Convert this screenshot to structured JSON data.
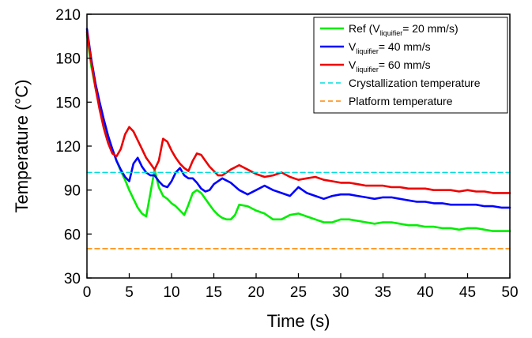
{
  "chart_data": {
    "type": "line",
    "xlabel": "Time (s)",
    "ylabel": "Temperature (°C)",
    "xlim": [
      0,
      50
    ],
    "ylim": [
      30,
      210
    ],
    "xticks": [
      0,
      5,
      10,
      15,
      20,
      25,
      30,
      35,
      40,
      45,
      50
    ],
    "yticks": [
      30,
      60,
      90,
      120,
      150,
      180,
      210
    ],
    "grid": false,
    "legend_position": "top-right",
    "series": [
      {
        "name": "Ref (Vliquifier= 20 mm/s)",
        "legend": {
          "pre": "Ref (V",
          "sub": "liquifier",
          "post": "= 20 mm/s)"
        },
        "color": "#00ee00",
        "style": "solid",
        "x": [
          0,
          0.5,
          1,
          1.5,
          2,
          2.5,
          3,
          3.5,
          4,
          4.5,
          5,
          5.5,
          6,
          6.5,
          7,
          7.5,
          8,
          8.5,
          9,
          9.5,
          10,
          10.5,
          11,
          11.5,
          12,
          12.5,
          13,
          13.5,
          14,
          14.5,
          15,
          15.5,
          16,
          16.5,
          17,
          17.5,
          18,
          19,
          20,
          21,
          22,
          23,
          24,
          25,
          26,
          27,
          28,
          29,
          30,
          31,
          32,
          33,
          34,
          35,
          36,
          37,
          38,
          39,
          40,
          41,
          42,
          43,
          44,
          45,
          46,
          47,
          48,
          49,
          50
        ],
        "y": [
          196,
          175,
          160,
          147,
          136,
          126,
          118,
          110,
          103,
          97,
          90,
          84,
          78,
          74,
          72,
          88,
          104,
          92,
          86,
          84,
          81,
          79,
          76,
          73,
          80,
          88,
          90,
          88,
          84,
          80,
          76,
          73,
          71,
          70,
          70,
          73,
          80,
          79,
          76,
          74,
          70,
          70,
          73,
          74,
          72,
          70,
          68,
          68,
          70,
          70,
          69,
          68,
          67,
          68,
          68,
          67,
          66,
          66,
          65,
          65,
          64,
          64,
          63,
          64,
          64,
          63,
          62,
          62,
          62
        ]
      },
      {
        "name": "Vliquifier= 40 mm/s",
        "legend": {
          "pre": "V",
          "sub": "liquifier",
          "post": "= 40 mm/s"
        },
        "color": "#0000ff",
        "style": "solid",
        "x": [
          0,
          0.5,
          1,
          1.5,
          2,
          2.5,
          3,
          3.5,
          4,
          4.5,
          5,
          5.5,
          6,
          6.5,
          7,
          7.5,
          8,
          8.5,
          9,
          9.5,
          10,
          10.5,
          11,
          11.5,
          12,
          12.5,
          13,
          13.5,
          14,
          14.5,
          15,
          16,
          17,
          18,
          19,
          20,
          21,
          22,
          23,
          24,
          25,
          26,
          27,
          28,
          29,
          30,
          31,
          32,
          33,
          34,
          35,
          36,
          37,
          38,
          39,
          40,
          41,
          42,
          43,
          44,
          45,
          46,
          47,
          48,
          49,
          50
        ],
        "y": [
          200,
          180,
          163,
          150,
          138,
          127,
          118,
          110,
          104,
          99,
          96,
          108,
          112,
          106,
          102,
          100,
          100,
          96,
          93,
          92,
          96,
          102,
          105,
          100,
          98,
          98,
          95,
          91,
          89,
          90,
          94,
          98,
          95,
          90,
          87,
          90,
          93,
          90,
          88,
          86,
          92,
          88,
          86,
          84,
          86,
          87,
          87,
          86,
          85,
          84,
          85,
          85,
          84,
          83,
          82,
          82,
          81,
          81,
          80,
          80,
          80,
          80,
          79,
          79,
          78,
          78
        ]
      },
      {
        "name": "Vliquifier= 60 mm/s",
        "legend": {
          "pre": "V",
          "sub": "liquifier",
          "post": "= 60 mm/s"
        },
        "color": "#ee0000",
        "style": "solid",
        "x": [
          0,
          0.5,
          1,
          1.5,
          2,
          2.5,
          3,
          3.5,
          4,
          4.5,
          5,
          5.5,
          6,
          6.5,
          7,
          7.5,
          8,
          8.5,
          9,
          9.5,
          10,
          10.5,
          11,
          11.5,
          12,
          12.5,
          13,
          13.5,
          14,
          14.5,
          15,
          15.5,
          16,
          17,
          18,
          19,
          20,
          21,
          22,
          23,
          24,
          25,
          26,
          27,
          28,
          29,
          30,
          31,
          32,
          33,
          34,
          35,
          36,
          37,
          38,
          39,
          40,
          41,
          42,
          43,
          44,
          45,
          46,
          47,
          48,
          49,
          50
        ],
        "y": [
          198,
          178,
          160,
          145,
          132,
          122,
          115,
          113,
          118,
          128,
          133,
          130,
          124,
          118,
          112,
          108,
          104,
          110,
          125,
          123,
          117,
          112,
          108,
          105,
          103,
          110,
          115,
          114,
          110,
          106,
          103,
          100,
          100,
          104,
          107,
          104,
          101,
          99,
          100,
          102,
          99,
          97,
          98,
          99,
          97,
          96,
          95,
          95,
          94,
          93,
          93,
          93,
          92,
          92,
          91,
          91,
          91,
          90,
          90,
          90,
          89,
          90,
          89,
          89,
          88,
          88,
          88
        ]
      },
      {
        "name": "Crystallization temperature",
        "legend": {
          "pre": "Crystallization temperature",
          "sub": "",
          "post": ""
        },
        "color": "#00dddd",
        "style": "dashed",
        "x": [
          0,
          50
        ],
        "y": [
          102,
          102
        ]
      },
      {
        "name": "Platform temperature",
        "legend": {
          "pre": "Platform temperature",
          "sub": "",
          "post": ""
        },
        "color": "#ff8800",
        "style": "dashed",
        "x": [
          0,
          50
        ],
        "y": [
          50,
          50
        ]
      }
    ]
  }
}
